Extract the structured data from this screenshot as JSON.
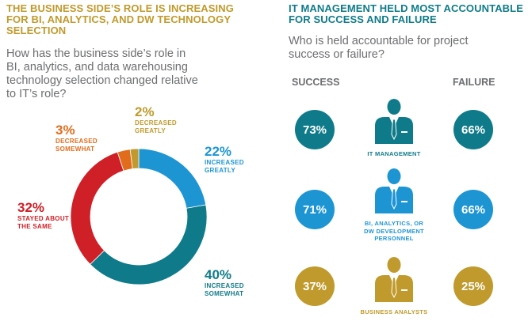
{
  "colors": {
    "gold": "#c09a2c",
    "teal": "#0f7b8a",
    "blue": "#1e95d3",
    "red": "#cf2027",
    "orange": "#e16d1c",
    "gray_text": "#6d6e71"
  },
  "left_panel": {
    "title_line1": "THE BUSINESS SIDE’S ROLE IS INCREASING",
    "title_line2": "FOR BI, ANALYTICS, AND DW TECHNOLOGY",
    "title_line3": "SELECTION",
    "question_line1": "How has the business side’s role in",
    "question_line2": "BI, analytics, and data warehousing",
    "question_line3": "technology selection changed relative",
    "question_line4": "to IT’s role?"
  },
  "right_panel": {
    "title_line1": "IT MANAGEMENT HELD MOST ACCOUNTABLE",
    "title_line2": "FOR SUCCESS AND FAILURE",
    "question_line1": "Who is held accountable for project",
    "question_line2": "success or failure?",
    "success_header": "SUCCESS",
    "failure_header": "FAILURE"
  },
  "chart_data": [
    {
      "type": "pie",
      "variant": "donut",
      "slices": [
        {
          "label_line1": "INCREASED",
          "label_line2": "GREATLY",
          "value": 22,
          "display": "22%",
          "color": "#1e95d3"
        },
        {
          "label_line1": "INCREASED",
          "label_line2": "SOMEWHAT",
          "value": 40,
          "display": "40%",
          "color": "#0f7b8a"
        },
        {
          "label_line1": "STAYED ABOUT",
          "label_line2": "THE SAME",
          "value": 32,
          "display": "32%",
          "color": "#cf2027"
        },
        {
          "label_line1": "DECREASED",
          "label_line2": "SOMEWHAT",
          "value": 3,
          "display": "3%",
          "color": "#e16d1c"
        },
        {
          "label_line1": "DECREASED",
          "label_line2": "GREATLY",
          "value": 2,
          "display": "2%",
          "color": "#c09a2c"
        }
      ]
    },
    {
      "type": "table",
      "columns": [
        "SUCCESS",
        "FAILURE"
      ],
      "rows": [
        {
          "role_line1": "IT MANAGEMENT",
          "role_line2": "",
          "role_line3": "",
          "success": "73%",
          "failure": "66%",
          "color": "#0f7b8a",
          "icon": "person-icon"
        },
        {
          "role_line1": "BI, ANALYTICS, OR",
          "role_line2": "DW DEVELOPMENT",
          "role_line3": "PERSONNEL",
          "success": "71%",
          "failure": "66%",
          "color": "#1e95d3",
          "icon": "person-icon"
        },
        {
          "role_line1": "BUSINESS ANALYSTS",
          "role_line2": "",
          "role_line3": "",
          "success": "37%",
          "failure": "25%",
          "color": "#c09a2c",
          "icon": "person-icon"
        }
      ]
    }
  ]
}
